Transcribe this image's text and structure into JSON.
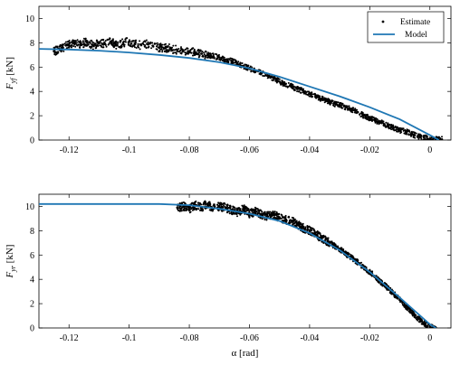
{
  "chart_data": [
    {
      "type": "scatter",
      "ylabel": "F_yf [kN]",
      "xlabel": "",
      "xlim": [
        -0.13,
        0.007
      ],
      "ylim": [
        0,
        11
      ],
      "xticks": [
        "-0.12",
        "-0.1",
        "-0.08",
        "-0.06",
        "-0.04",
        "-0.02",
        "0"
      ],
      "yticks": [
        "0",
        "2",
        "4",
        "6",
        "8",
        "10"
      ],
      "legend": {
        "placement": "top-right",
        "entries": [
          "Estimate",
          "Model"
        ]
      },
      "colors": {
        "estimate": "#000000",
        "model": "#1f77b4"
      },
      "series": [
        {
          "name": "Estimate",
          "kind": "markers",
          "x": [
            -0.125,
            -0.122,
            -0.12,
            -0.118,
            -0.116,
            -0.114,
            -0.112,
            -0.11,
            -0.108,
            -0.106,
            -0.104,
            -0.102,
            -0.1,
            -0.098,
            -0.096,
            -0.094,
            -0.092,
            -0.09,
            -0.088,
            -0.086,
            -0.084,
            -0.082,
            -0.08,
            -0.078,
            -0.076,
            -0.074,
            -0.072,
            -0.07,
            -0.068,
            -0.066,
            -0.064,
            -0.062,
            -0.06,
            -0.058,
            -0.056,
            -0.054,
            -0.052,
            -0.05,
            -0.048,
            -0.046,
            -0.044,
            -0.042,
            -0.04,
            -0.038,
            -0.036,
            -0.034,
            -0.032,
            -0.03,
            -0.028,
            -0.026,
            -0.024,
            -0.022,
            -0.02,
            -0.018,
            -0.016,
            -0.014,
            -0.012,
            -0.01,
            -0.008,
            -0.006,
            -0.004,
            -0.002,
            0.0,
            0.002,
            0.004
          ],
          "y": [
            7.3,
            7.6,
            7.9,
            8.0,
            7.9,
            8.1,
            7.8,
            8.0,
            7.9,
            8.1,
            7.8,
            8.0,
            8.1,
            7.9,
            7.8,
            7.9,
            7.7,
            7.6,
            7.6,
            7.5,
            7.4,
            7.3,
            7.3,
            7.2,
            7.1,
            7.0,
            6.9,
            6.8,
            6.6,
            6.5,
            6.3,
            6.1,
            5.9,
            5.7,
            5.5,
            5.3,
            5.1,
            4.8,
            4.6,
            4.4,
            4.2,
            4.0,
            3.8,
            3.6,
            3.4,
            3.2,
            3.0,
            2.9,
            2.7,
            2.5,
            2.3,
            2.0,
            1.8,
            1.6,
            1.4,
            1.2,
            1.0,
            0.8,
            0.7,
            0.5,
            0.3,
            0.2,
            0.1,
            0.05,
            0.05
          ]
        },
        {
          "name": "Model",
          "kind": "line",
          "x": [
            -0.13,
            -0.12,
            -0.11,
            -0.1,
            -0.09,
            -0.08,
            -0.07,
            -0.06,
            -0.05,
            -0.04,
            -0.03,
            -0.02,
            -0.01,
            0.0,
            0.003
          ],
          "y": [
            7.5,
            7.45,
            7.35,
            7.2,
            7.0,
            6.75,
            6.4,
            5.9,
            5.2,
            4.4,
            3.6,
            2.7,
            1.7,
            0.4,
            0.0
          ]
        }
      ]
    },
    {
      "type": "scatter",
      "ylabel": "F_yr [kN]",
      "xlabel": "α [rad]",
      "xlim": [
        -0.13,
        0.007
      ],
      "ylim": [
        0,
        11
      ],
      "xticks": [
        "-0.12",
        "-0.1",
        "-0.08",
        "-0.06",
        "-0.04",
        "-0.02",
        "0"
      ],
      "yticks": [
        "0",
        "2",
        "4",
        "6",
        "8",
        "10"
      ],
      "colors": {
        "estimate": "#000000",
        "model": "#1f77b4"
      },
      "series": [
        {
          "name": "Estimate",
          "kind": "markers",
          "x": [
            -0.084,
            -0.082,
            -0.08,
            -0.078,
            -0.076,
            -0.074,
            -0.072,
            -0.07,
            -0.068,
            -0.066,
            -0.064,
            -0.062,
            -0.06,
            -0.058,
            -0.056,
            -0.054,
            -0.052,
            -0.05,
            -0.048,
            -0.046,
            -0.044,
            -0.042,
            -0.04,
            -0.038,
            -0.036,
            -0.034,
            -0.032,
            -0.03,
            -0.028,
            -0.026,
            -0.024,
            -0.022,
            -0.02,
            -0.018,
            -0.016,
            -0.014,
            -0.012,
            -0.01,
            -0.008,
            -0.006,
            -0.004,
            -0.002,
            0.0,
            0.002
          ],
          "y": [
            9.9,
            10.0,
            9.8,
            10.1,
            9.9,
            10.2,
            9.8,
            10.0,
            9.9,
            9.7,
            9.5,
            9.8,
            9.4,
            9.6,
            9.3,
            9.2,
            9.3,
            9.1,
            8.9,
            8.8,
            8.5,
            8.2,
            8.0,
            7.7,
            7.4,
            7.1,
            6.8,
            6.5,
            6.1,
            5.8,
            5.4,
            5.0,
            4.6,
            4.2,
            3.7,
            3.3,
            2.8,
            2.3,
            1.8,
            1.3,
            0.8,
            0.4,
            0.1,
            0.0
          ]
        },
        {
          "name": "Model",
          "kind": "line",
          "x": [
            -0.13,
            -0.12,
            -0.1,
            -0.09,
            -0.08,
            -0.07,
            -0.06,
            -0.05,
            -0.04,
            -0.03,
            -0.02,
            -0.01,
            0.0,
            0.002
          ],
          "y": [
            10.2,
            10.2,
            10.2,
            10.2,
            10.1,
            9.8,
            9.4,
            8.8,
            7.8,
            6.4,
            4.6,
            2.5,
            0.3,
            0.0
          ]
        }
      ]
    }
  ]
}
